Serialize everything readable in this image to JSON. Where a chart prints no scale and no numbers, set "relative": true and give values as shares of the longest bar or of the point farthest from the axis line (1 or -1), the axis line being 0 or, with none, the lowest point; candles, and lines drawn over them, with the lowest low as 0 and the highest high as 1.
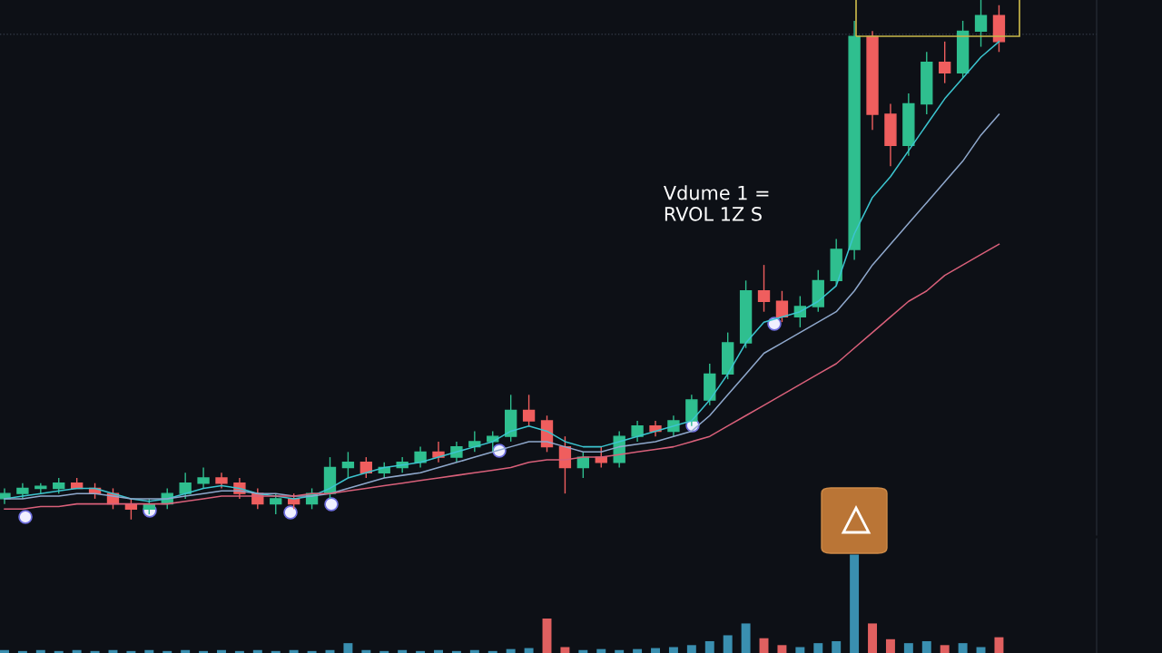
{
  "chart_data": [
    {
      "type": "candlestick",
      "relative": true,
      "annotations": [
        "Vdume 1 =\nRVOL 1Z S"
      ],
      "categories": [
        null,
        null,
        null,
        null,
        null,
        null,
        null,
        null,
        null,
        null,
        null,
        null,
        null,
        null,
        null,
        null,
        null,
        null,
        null,
        null,
        null,
        null,
        null,
        null,
        null,
        null,
        null,
        null,
        null,
        null,
        null,
        null,
        null,
        null,
        null,
        null,
        null,
        null,
        null,
        null,
        null,
        null,
        null,
        null,
        null,
        null,
        null,
        null,
        null,
        null,
        null,
        null,
        null,
        null,
        null,
        null
      ],
      "ohlc": [
        [
          0.04,
          0.06,
          0.03,
          0.05
        ],
        [
          0.05,
          0.07,
          0.04,
          0.06
        ],
        [
          0.06,
          0.07,
          0.05,
          0.06
        ],
        [
          0.06,
          0.08,
          0.05,
          0.07
        ],
        [
          0.07,
          0.08,
          0.06,
          0.06
        ],
        [
          0.06,
          0.07,
          0.04,
          0.05
        ],
        [
          0.05,
          0.06,
          0.02,
          0.03
        ],
        [
          0.03,
          0.04,
          0.0,
          0.02
        ],
        [
          0.02,
          0.04,
          0.01,
          0.03
        ],
        [
          0.03,
          0.06,
          0.02,
          0.05
        ],
        [
          0.05,
          0.09,
          0.04,
          0.07
        ],
        [
          0.07,
          0.1,
          0.06,
          0.08
        ],
        [
          0.08,
          0.09,
          0.06,
          0.07
        ],
        [
          0.07,
          0.08,
          0.04,
          0.05
        ],
        [
          0.05,
          0.06,
          0.02,
          0.03
        ],
        [
          0.03,
          0.05,
          0.01,
          0.04
        ],
        [
          0.04,
          0.05,
          0.02,
          0.03
        ],
        [
          0.03,
          0.06,
          0.02,
          0.05
        ],
        [
          0.05,
          0.12,
          0.04,
          0.1
        ],
        [
          0.1,
          0.13,
          0.08,
          0.11
        ],
        [
          0.11,
          0.12,
          0.08,
          0.09
        ],
        [
          0.09,
          0.11,
          0.08,
          0.1
        ],
        [
          0.1,
          0.12,
          0.09,
          0.11
        ],
        [
          0.11,
          0.14,
          0.1,
          0.13
        ],
        [
          0.13,
          0.15,
          0.11,
          0.12
        ],
        [
          0.12,
          0.15,
          0.11,
          0.14
        ],
        [
          0.14,
          0.17,
          0.13,
          0.15
        ],
        [
          0.15,
          0.17,
          0.13,
          0.16
        ],
        [
          0.16,
          0.24,
          0.15,
          0.21
        ],
        [
          0.21,
          0.24,
          0.18,
          0.19
        ],
        [
          0.19,
          0.2,
          0.13,
          0.14
        ],
        [
          0.14,
          0.16,
          0.05,
          0.1
        ],
        [
          0.1,
          0.13,
          0.08,
          0.12
        ],
        [
          0.12,
          0.14,
          0.1,
          0.11
        ],
        [
          0.11,
          0.17,
          0.1,
          0.16
        ],
        [
          0.16,
          0.19,
          0.15,
          0.18
        ],
        [
          0.18,
          0.19,
          0.16,
          0.17
        ],
        [
          0.17,
          0.2,
          0.16,
          0.19
        ],
        [
          0.19,
          0.24,
          0.18,
          0.23
        ],
        [
          0.23,
          0.3,
          0.22,
          0.28
        ],
        [
          0.28,
          0.36,
          0.27,
          0.34
        ],
        [
          0.34,
          0.46,
          0.33,
          0.44
        ],
        [
          0.44,
          0.49,
          0.4,
          0.42
        ],
        [
          0.42,
          0.44,
          0.38,
          0.39
        ],
        [
          0.39,
          0.43,
          0.37,
          0.41
        ],
        [
          0.41,
          0.48,
          0.4,
          0.46
        ],
        [
          0.46,
          0.54,
          0.45,
          0.52
        ],
        [
          0.52,
          0.96,
          0.5,
          0.93
        ],
        [
          0.93,
          0.94,
          0.75,
          0.78
        ],
        [
          0.78,
          0.8,
          0.68,
          0.72
        ],
        [
          0.72,
          0.82,
          0.7,
          0.8
        ],
        [
          0.8,
          0.9,
          0.78,
          0.88
        ],
        [
          0.88,
          0.92,
          0.84,
          0.86
        ],
        [
          0.86,
          0.96,
          0.85,
          0.94
        ],
        [
          0.94,
          1.0,
          0.91,
          0.97
        ],
        [
          0.97,
          0.99,
          0.9,
          0.92
        ]
      ],
      "colors": [
        "#2fbf8f",
        "#2fbf8f",
        "#2fbf8f",
        "#2fbf8f",
        "#ef5e5e",
        "#ef5e5e",
        "#ef5e5e",
        "#ef5e5e",
        "#2fbf8f",
        "#2fbf8f",
        "#2fbf8f",
        "#2fbf8f",
        "#ef5e5e",
        "#ef5e5e",
        "#ef5e5e",
        "#2fbf8f",
        "#ef5e5e",
        "#2fbf8f",
        "#2fbf8f",
        "#2fbf8f",
        "#ef5e5e",
        "#2fbf8f",
        "#2fbf8f",
        "#2fbf8f",
        "#ef5e5e",
        "#2fbf8f",
        "#2fbf8f",
        "#2fbf8f",
        "#2fbf8f",
        "#ef5e5e",
        "#ef5e5e",
        "#ef5e5e",
        "#2fbf8f",
        "#ef5e5e",
        "#2fbf8f",
        "#2fbf8f",
        "#ef5e5e",
        "#2fbf8f",
        "#2fbf8f",
        "#2fbf8f",
        "#2fbf8f",
        "#2fbf8f",
        "#ef5e5e",
        "#ef5e5e",
        "#2fbf8f",
        "#2fbf8f",
        "#2fbf8f",
        "#2fbf8f",
        "#ef5e5e",
        "#ef5e5e",
        "#2fbf8f",
        "#2fbf8f",
        "#ef5e5e",
        "#2fbf8f",
        "#2fbf8f",
        "#ef5e5e"
      ],
      "series": [
        {
          "type": "line",
          "color": "#3cc4cf",
          "values": [
            0.04,
            0.045,
            0.05,
            0.055,
            0.06,
            0.06,
            0.05,
            0.04,
            0.035,
            0.04,
            0.05,
            0.06,
            0.065,
            0.06,
            0.05,
            0.045,
            0.04,
            0.045,
            0.06,
            0.08,
            0.09,
            0.1,
            0.105,
            0.11,
            0.12,
            0.13,
            0.14,
            0.15,
            0.17,
            0.18,
            0.17,
            0.15,
            0.14,
            0.14,
            0.15,
            0.16,
            0.17,
            0.18,
            0.19,
            0.23,
            0.28,
            0.34,
            0.38,
            0.39,
            0.4,
            0.42,
            0.45,
            0.55,
            0.62,
            0.66,
            0.71,
            0.76,
            0.81,
            0.85,
            0.89,
            0.92
          ]
        },
        {
          "type": "line",
          "color": "#8fa8cc",
          "values": [
            0.04,
            0.04,
            0.045,
            0.045,
            0.05,
            0.05,
            0.045,
            0.04,
            0.04,
            0.04,
            0.045,
            0.05,
            0.055,
            0.055,
            0.05,
            0.05,
            0.045,
            0.045,
            0.05,
            0.06,
            0.07,
            0.08,
            0.085,
            0.09,
            0.1,
            0.11,
            0.12,
            0.13,
            0.14,
            0.15,
            0.15,
            0.14,
            0.13,
            0.13,
            0.14,
            0.145,
            0.15,
            0.16,
            0.17,
            0.2,
            0.24,
            0.28,
            0.32,
            0.34,
            0.36,
            0.38,
            0.4,
            0.44,
            0.49,
            0.53,
            0.57,
            0.61,
            0.65,
            0.69,
            0.74,
            0.78
          ]
        },
        {
          "type": "line",
          "color": "#d9607a",
          "values": [
            0.02,
            0.02,
            0.025,
            0.025,
            0.03,
            0.03,
            0.03,
            0.03,
            0.03,
            0.03,
            0.035,
            0.04,
            0.045,
            0.045,
            0.045,
            0.045,
            0.045,
            0.05,
            0.05,
            0.055,
            0.06,
            0.065,
            0.07,
            0.075,
            0.08,
            0.085,
            0.09,
            0.095,
            0.1,
            0.11,
            0.115,
            0.115,
            0.12,
            0.12,
            0.125,
            0.13,
            0.135,
            0.14,
            0.15,
            0.16,
            0.18,
            0.2,
            0.22,
            0.24,
            0.26,
            0.28,
            0.3,
            0.33,
            0.36,
            0.39,
            0.42,
            0.44,
            0.47,
            0.49,
            0.51,
            0.53
          ]
        }
      ],
      "ref_lines": [
        {
          "axis": "y",
          "value": 0.934,
          "color": "#2e3440",
          "line_style": "dotted"
        }
      ]
    },
    {
      "type": "bar",
      "relative": true,
      "categories": [
        null,
        null,
        null,
        null,
        null,
        null,
        null,
        null,
        null,
        null,
        null,
        null,
        null,
        null,
        null,
        null,
        null,
        null,
        null,
        null,
        null,
        null,
        null,
        null,
        null,
        null,
        null,
        null,
        null,
        null,
        null,
        null,
        null,
        null,
        null,
        null,
        null,
        null,
        null,
        null,
        null,
        null,
        null,
        null,
        null,
        null,
        null,
        null,
        null,
        null,
        null,
        null,
        null,
        null,
        null,
        null
      ],
      "values": [
        0.03,
        0.02,
        0.03,
        0.02,
        0.03,
        0.02,
        0.03,
        0.02,
        0.03,
        0.02,
        0.03,
        0.02,
        0.03,
        0.02,
        0.03,
        0.02,
        0.03,
        0.02,
        0.03,
        0.1,
        0.03,
        0.02,
        0.03,
        0.02,
        0.03,
        0.02,
        0.03,
        0.02,
        0.04,
        0.05,
        0.35,
        0.06,
        0.03,
        0.04,
        0.03,
        0.04,
        0.05,
        0.06,
        0.08,
        0.12,
        0.18,
        0.3,
        0.15,
        0.08,
        0.06,
        0.1,
        0.12,
        1.0,
        0.3,
        0.14,
        0.1,
        0.12,
        0.08,
        0.1,
        0.06,
        0.16
      ],
      "colors": [
        "#3a8fb0",
        "#3a8fb0",
        "#3a8fb0",
        "#3a8fb0",
        "#3a8fb0",
        "#3a8fb0",
        "#3a8fb0",
        "#3a8fb0",
        "#3a8fb0",
        "#3a8fb0",
        "#3a8fb0",
        "#3a8fb0",
        "#3a8fb0",
        "#3a8fb0",
        "#3a8fb0",
        "#3a8fb0",
        "#3a8fb0",
        "#3a8fb0",
        "#3a8fb0",
        "#3a8fb0",
        "#3a8fb0",
        "#3a8fb0",
        "#3a8fb0",
        "#3a8fb0",
        "#3a8fb0",
        "#3a8fb0",
        "#3a8fb0",
        "#3a8fb0",
        "#3a8fb0",
        "#3a8fb0",
        "#e06060",
        "#e06060",
        "#3a8fb0",
        "#3a8fb0",
        "#3a8fb0",
        "#3a8fb0",
        "#3a8fb0",
        "#3a8fb0",
        "#3a8fb0",
        "#3a8fb0",
        "#3a8fb0",
        "#3a8fb0",
        "#e06060",
        "#e06060",
        "#3a8fb0",
        "#3a8fb0",
        "#3a8fb0",
        "#3a8fb0",
        "#e06060",
        "#e06060",
        "#3a8fb0",
        "#3a8fb0",
        "#e06060",
        "#3a8fb0",
        "#3a8fb0",
        "#e06060"
      ]
    }
  ]
}
